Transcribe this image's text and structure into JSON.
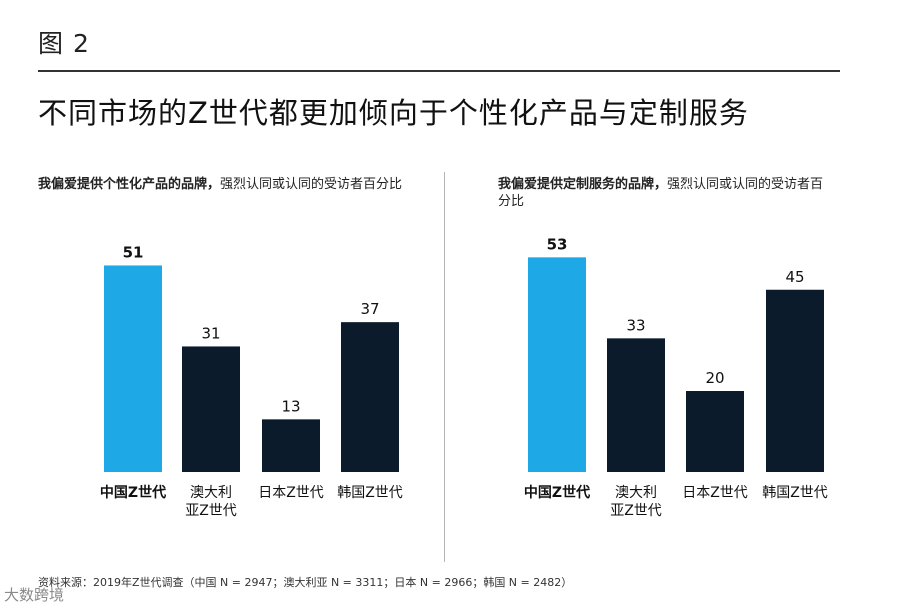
{
  "figure_label": "图 2",
  "headline": "不同市场的Z世代都更加倾向于个性化产品与定制服务",
  "source": "资料来源：2019年Z世代调查（中国 N = 2947；澳大利亚 N = 3311；日本 N = 2966；韩国 N = 2482）",
  "watermark": "大数跨境",
  "colors": {
    "highlight": "#1ea8e6",
    "bar": "#0c1b2b"
  },
  "chart_data": [
    {
      "type": "bar",
      "title_bold": "我偏爱提供个性化产品的品牌，",
      "title_rest": "强烈认同或认同的受访者百分比",
      "categories": [
        "中国Z世代",
        "澳大利亚Z世代",
        "日本Z世代",
        "韩国Z世代"
      ],
      "values": [
        51,
        31,
        13,
        37
      ],
      "highlight_index": 0
    },
    {
      "type": "bar",
      "title_bold": "我偏爱提供定制服务的品牌，",
      "title_rest": "强烈认同或认同的受访者百分比",
      "categories": [
        "中国Z世代",
        "澳大利亚Z世代",
        "日本Z世代",
        "韩国Z世代"
      ],
      "values": [
        53,
        33,
        20,
        45
      ],
      "highlight_index": 0
    }
  ]
}
